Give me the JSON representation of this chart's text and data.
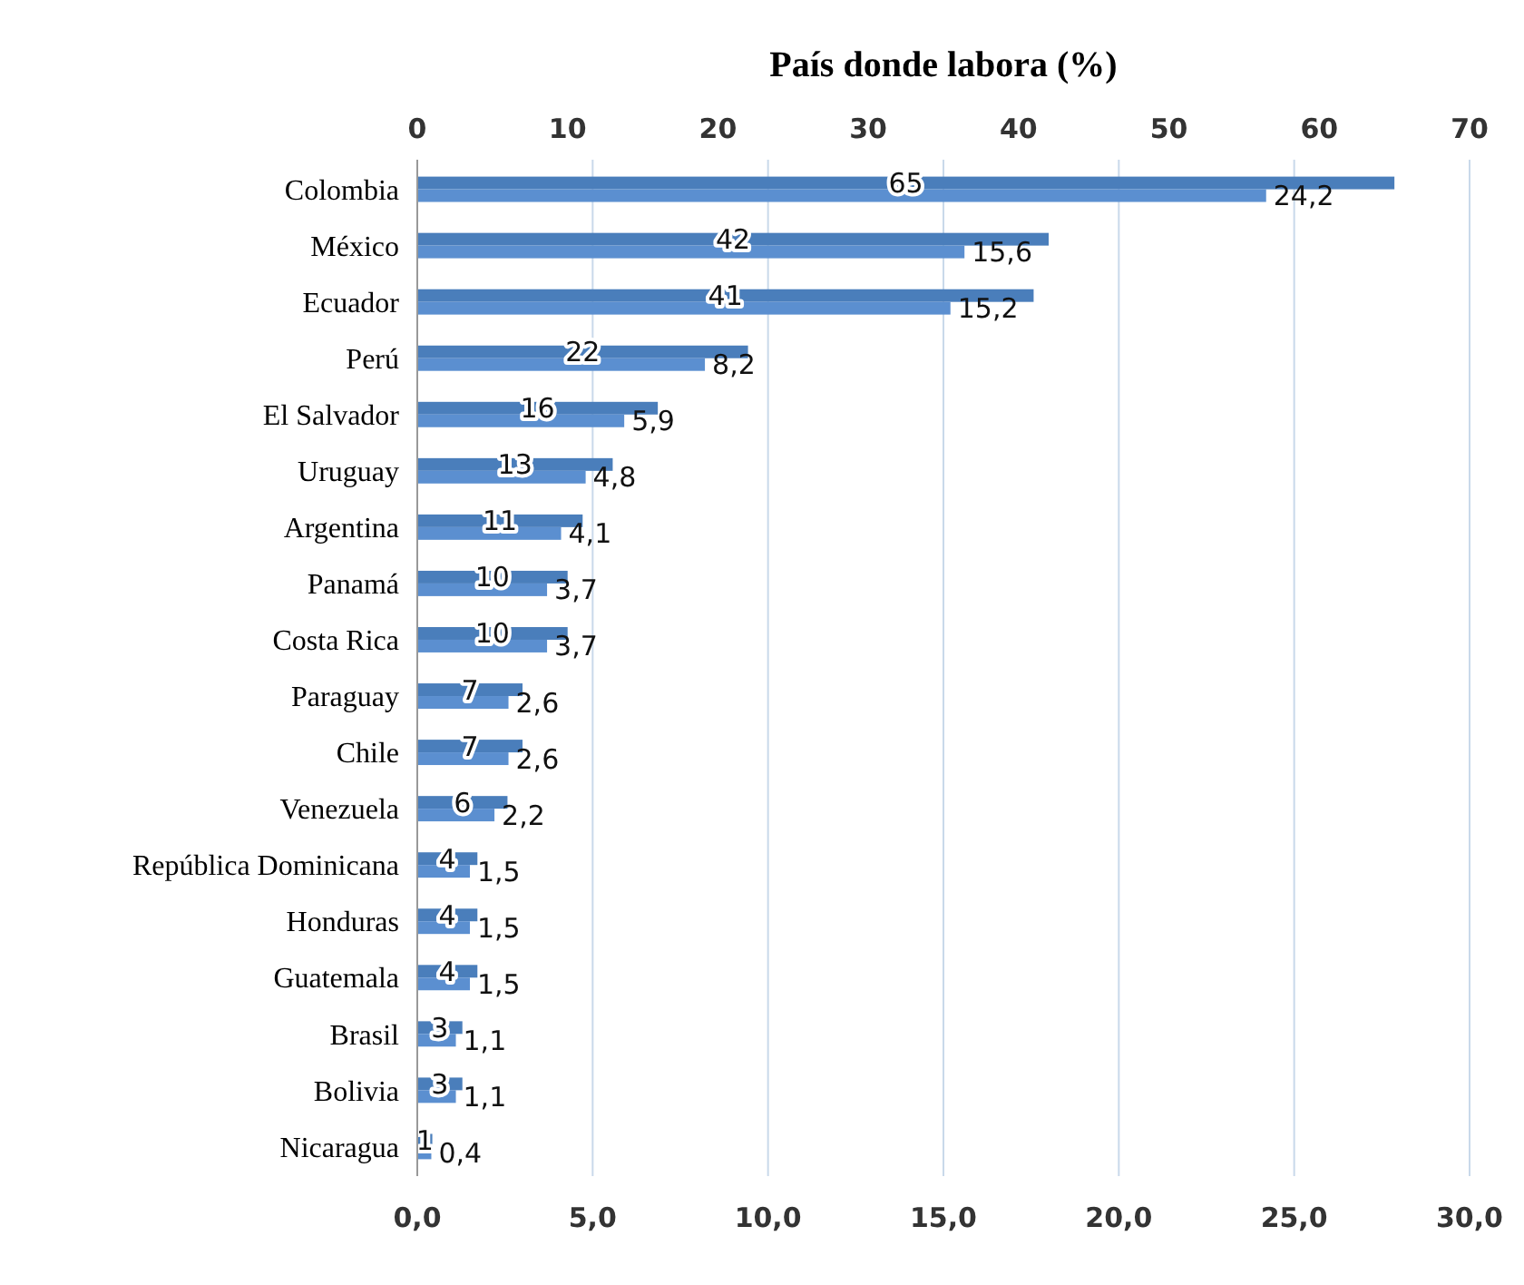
{
  "chart_data": {
    "type": "bar",
    "title": "País donde labora (%)",
    "orientation": "horizontal",
    "categories": [
      "Colombia",
      "México",
      "Ecuador",
      "Perú",
      "El Salvador",
      "Uruguay",
      "Argentina",
      "Panamá",
      "Costa Rica",
      "Paraguay",
      "Chile",
      "Venezuela",
      "República Dominicana",
      "Honduras",
      "Guatemala",
      "Brasil",
      "Bolivia",
      "Nicaragua"
    ],
    "series": [
      {
        "color": "#4a7ebb",
        "axis": "x2",
        "values": [
          65,
          42,
          41,
          22,
          16,
          13,
          11,
          10,
          10,
          7,
          7,
          6,
          4,
          4,
          4,
          3,
          3,
          1
        ],
        "value_labels": [
          "65",
          "42",
          "41",
          "22",
          "16",
          "13",
          "11",
          "10",
          "10",
          "7",
          "7",
          "6",
          "4",
          "4",
          "4",
          "3",
          "3",
          "1"
        ]
      },
      {
        "color": "#5b8fd0",
        "values": [
          24.2,
          15.6,
          15.2,
          8.2,
          5.9,
          4.8,
          4.1,
          3.7,
          3.7,
          2.6,
          2.6,
          2.2,
          1.5,
          1.5,
          1.5,
          1.1,
          1.1,
          0.4
        ],
        "value_labels": [
          "24,2",
          "15,6",
          "15,2",
          "8,2",
          "5,9",
          "4,8",
          "4,1",
          "3,7",
          "3,7",
          "2,6",
          "2,6",
          "2,2",
          "1,5",
          "1,5",
          "1,5",
          "1,1",
          "1,1",
          "0,4"
        ]
      }
    ],
    "xlim": [
      0,
      30
    ],
    "xticks": [
      {
        "value": 0,
        "label": "0,0"
      },
      {
        "value": 5,
        "label": "5,0"
      },
      {
        "value": 10,
        "label": "10,0"
      },
      {
        "value": 15,
        "label": "15,0"
      },
      {
        "value": 20,
        "label": "20,0"
      },
      {
        "value": 25,
        "label": "25,0"
      },
      {
        "value": 30,
        "label": "30,0"
      }
    ],
    "x2lim": [
      0,
      70
    ],
    "x2ticks": [
      0,
      10,
      20,
      30,
      40,
      50,
      60,
      70
    ],
    "grid": "x"
  }
}
